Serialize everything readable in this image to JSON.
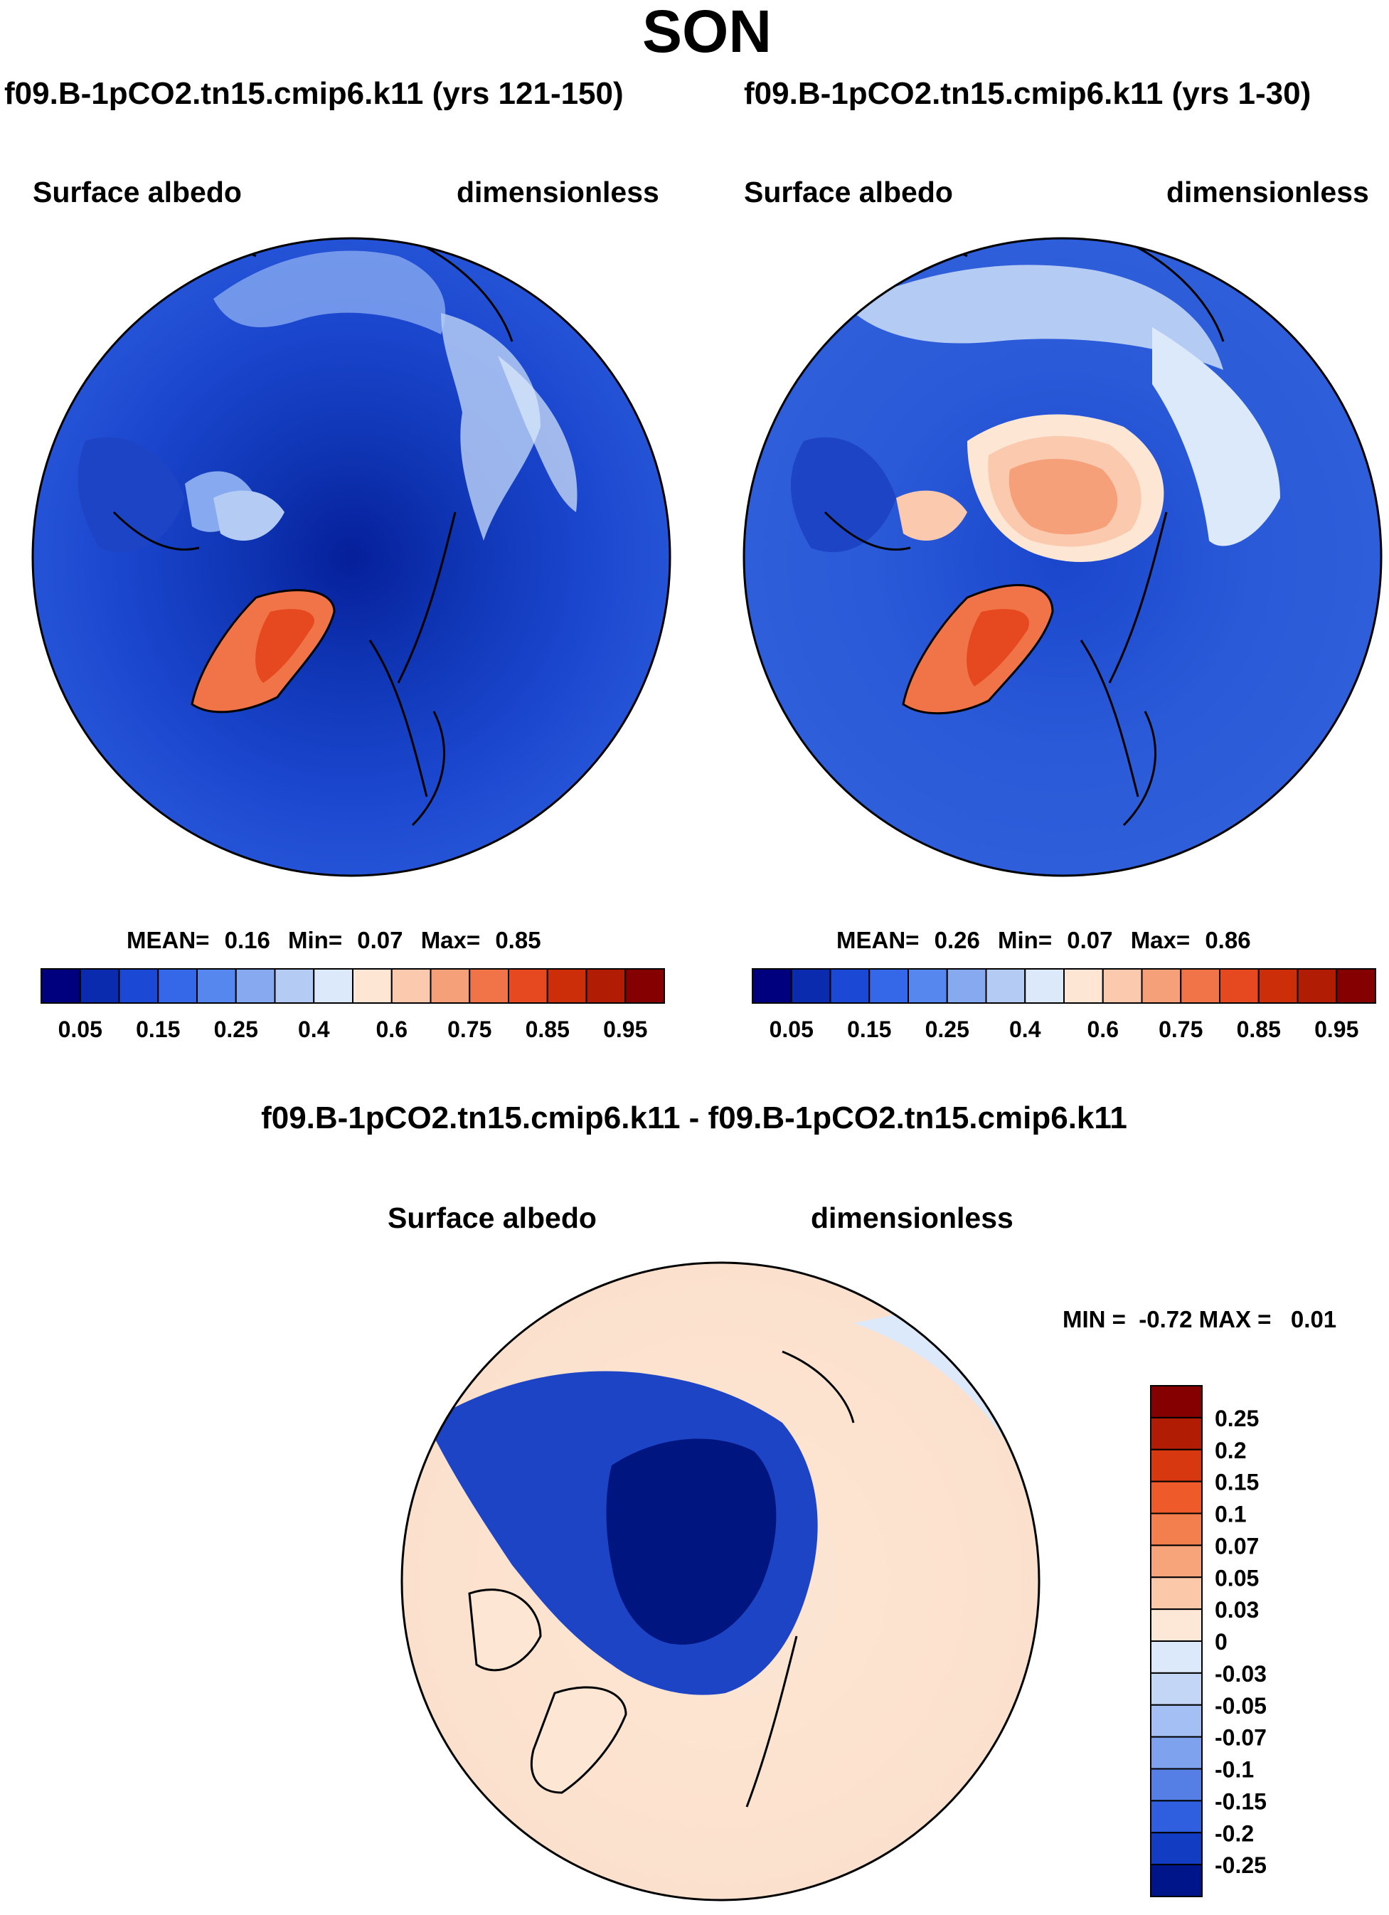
{
  "page": {
    "title": "SON"
  },
  "panels": [
    {
      "title": "f09.B-1pCO2.tn15.cmip6.k11 (yrs 121-150)",
      "left_label": "Surface albedo",
      "right_label": "dimensionless",
      "stats": {
        "mean_label": "MEAN=",
        "mean": "0.16",
        "min_label": "Min=",
        "min": "0.07",
        "max_label": "Max=",
        "max": "0.85"
      }
    },
    {
      "title": "f09.B-1pCO2.tn15.cmip6.k11 (yrs 1-30)",
      "left_label": "Surface albedo",
      "right_label": "dimensionless",
      "stats": {
        "mean_label": "MEAN=",
        "mean": "0.26",
        "min_label": "Min=",
        "min": "0.07",
        "max_label": "Max=",
        "max": "0.86"
      }
    }
  ],
  "colorbar_top": {
    "colors": [
      "#00007f",
      "#0a2bae",
      "#1c48d6",
      "#3468e9",
      "#5587ee",
      "#86a9f0",
      "#b4cbf4",
      "#dce9fb",
      "#fde6d4",
      "#fac9ae",
      "#f6a07a",
      "#f07448",
      "#e6481f",
      "#cc2e0a",
      "#b01d04",
      "#850000"
    ],
    "labels": [
      "0.05",
      "0.15",
      "0.25",
      "0.4",
      "0.6",
      "0.75",
      "0.85",
      "0.95"
    ]
  },
  "diff_panel": {
    "title": "f09.B-1pCO2.tn15.cmip6.k11 - f09.B-1pCO2.tn15.cmip6.k11",
    "left_label": "Surface albedo",
    "right_label": "dimensionless",
    "minmax": "MIN =  -0.72 MAX =   0.01"
  },
  "colorbar_diff": {
    "colors": [
      "#850000",
      "#b01d04",
      "#d8380f",
      "#ef5a2a",
      "#f47f4e",
      "#f7a47b",
      "#fbc8a9",
      "#fde7d6",
      "#dce9fb",
      "#c3d6f6",
      "#a3bff3",
      "#7ea2ee",
      "#567fe6",
      "#2f5fde",
      "#123cc2",
      "#00158a"
    ],
    "labels": [
      "0.25",
      "0.2",
      "0.15",
      "0.1",
      "0.07",
      "0.05",
      "0.03",
      "0",
      "-0.03",
      "-0.05",
      "-0.07",
      "-0.1",
      "-0.15",
      "-0.2",
      "-0.25"
    ]
  },
  "chart_data": {
    "type": "heatmap",
    "season": "SON",
    "variable": "Surface albedo",
    "units": "dimensionless",
    "projection": "north polar stereographic",
    "panels": [
      {
        "case": "f09.B-1pCO2.tn15.cmip6.k11",
        "years": "121-150",
        "mean": 0.16,
        "min": 0.07,
        "max": 0.85
      },
      {
        "case": "f09.B-1pCO2.tn15.cmip6.k11",
        "years": "1-30",
        "mean": 0.26,
        "min": 0.07,
        "max": 0.86
      },
      {
        "case": "difference",
        "min": -0.72,
        "max": 0.01
      }
    ]
  }
}
